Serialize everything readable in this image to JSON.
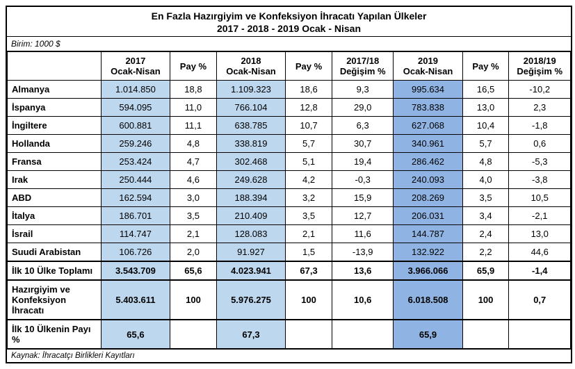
{
  "title_line1": "En Fazla Hazırgiyim ve Konfeksiyon İhracatı Yapılan Ülkeler",
  "title_line2": "2017 - 2018 - 2019 Ocak - Nisan",
  "unit": "Birim: 1000 $",
  "source": "Kaynak: İhracatçı Birlikleri Kayıtları",
  "colors": {
    "year_light": "#bdd7ee",
    "year_dark": "#8fb4e3",
    "border": "#000000",
    "bg": "#ffffff"
  },
  "headers": {
    "blank": "",
    "y2017": "2017\nOcak-Nisan",
    "pay2017": "Pay %",
    "y2018": "2018\nOcak-Nisan",
    "pay2018": "Pay %",
    "chg1718": "2017/18\nDeğişim %",
    "y2019": "2019\nOcak-Nisan",
    "pay2019": "Pay %",
    "chg1819": "2018/19\nDeğişim %"
  },
  "rows": [
    {
      "label": "Almanya",
      "y17": "1.014.850",
      "p17": "18,8",
      "y18": "1.109.323",
      "p18": "18,6",
      "d1718": "9,3",
      "y19": "995.634",
      "p19": "16,5",
      "d1819": "-10,2"
    },
    {
      "label": "İspanya",
      "y17": "594.095",
      "p17": "11,0",
      "y18": "766.104",
      "p18": "12,8",
      "d1718": "29,0",
      "y19": "783.838",
      "p19": "13,0",
      "d1819": "2,3"
    },
    {
      "label": "İngiltere",
      "y17": "600.881",
      "p17": "11,1",
      "y18": "638.785",
      "p18": "10,7",
      "d1718": "6,3",
      "y19": "627.068",
      "p19": "10,4",
      "d1819": "-1,8"
    },
    {
      "label": "Hollanda",
      "y17": "259.246",
      "p17": "4,8",
      "y18": "338.819",
      "p18": "5,7",
      "d1718": "30,7",
      "y19": "340.961",
      "p19": "5,7",
      "d1819": "0,6"
    },
    {
      "label": "Fransa",
      "y17": "253.424",
      "p17": "4,7",
      "y18": "302.468",
      "p18": "5,1",
      "d1718": "19,4",
      "y19": "286.462",
      "p19": "4,8",
      "d1819": "-5,3"
    },
    {
      "label": "Irak",
      "y17": "250.444",
      "p17": "4,6",
      "y18": "249.628",
      "p18": "4,2",
      "d1718": "-0,3",
      "y19": "240.093",
      "p19": "4,0",
      "d1819": "-3,8"
    },
    {
      "label": "ABD",
      "y17": "162.594",
      "p17": "3,0",
      "y18": "188.394",
      "p18": "3,2",
      "d1718": "15,9",
      "y19": "208.269",
      "p19": "3,5",
      "d1819": "10,5"
    },
    {
      "label": "İtalya",
      "y17": "186.701",
      "p17": "3,5",
      "y18": "210.409",
      "p18": "3,5",
      "d1718": "12,7",
      "y19": "206.031",
      "p19": "3,4",
      "d1819": "-2,1"
    },
    {
      "label": "İsrail",
      "y17": "114.747",
      "p17": "2,1",
      "y18": "128.083",
      "p18": "2,1",
      "d1718": "11,6",
      "y19": "144.787",
      "p19": "2,4",
      "d1819": "13,0"
    },
    {
      "label": "Suudi Arabistan",
      "y17": "106.726",
      "p17": "2,0",
      "y18": "91.927",
      "p18": "1,5",
      "d1718": "-13,9",
      "y19": "132.922",
      "p19": "2,2",
      "d1819": "44,6"
    }
  ],
  "summary": [
    {
      "label": "İlk 10 Ülke Toplamı",
      "y17": "3.543.709",
      "p17": "65,6",
      "y18": "4.023.941",
      "p18": "67,3",
      "d1718": "13,6",
      "y19": "3.966.066",
      "p19": "65,9",
      "d1819": "-1,4"
    },
    {
      "label": "Hazırgiyim ve Konfeksiyon İhracatı",
      "y17": "5.403.611",
      "p17": "100",
      "y18": "5.976.275",
      "p18": "100",
      "d1718": "10,6",
      "y19": "6.018.508",
      "p19": "100",
      "d1819": "0,7"
    },
    {
      "label": "İlk 10 Ülkenin Payı %",
      "y17": "65,6",
      "p17": "",
      "y18": "67,3",
      "p18": "",
      "d1718": "",
      "y19": "65,9",
      "p19": "",
      "d1819": ""
    }
  ]
}
